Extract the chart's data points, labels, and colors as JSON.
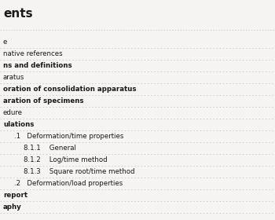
{
  "title": "ents",
  "background_color": "#f5f4f2",
  "rows": [
    {
      "indent": 0,
      "text": "e",
      "bold": false,
      "separator": true
    },
    {
      "indent": 0,
      "text": "native references",
      "bold": false,
      "separator": true
    },
    {
      "indent": 0,
      "text": "ns and definitions",
      "bold": true,
      "separator": true
    },
    {
      "indent": 0,
      "text": "aratus",
      "bold": false,
      "separator": true
    },
    {
      "indent": 0,
      "text": "oration of consolidation apparatus",
      "bold": true,
      "separator": true
    },
    {
      "indent": 0,
      "text": "aration of specimens",
      "bold": true,
      "separator": true
    },
    {
      "indent": 0,
      "text": "edure",
      "bold": false,
      "separator": true
    },
    {
      "indent": 0,
      "text": "ulations",
      "bold": true,
      "separator": true
    },
    {
      "indent": 1,
      "text": ".1   Deformation/time properties",
      "bold": false,
      "separator": true
    },
    {
      "indent": 2,
      "text": "8.1.1    General",
      "bold": false,
      "separator": true
    },
    {
      "indent": 2,
      "text": "8.1.2    Log/time method",
      "bold": false,
      "separator": true
    },
    {
      "indent": 2,
      "text": "8.1.3    Square root/time method",
      "bold": false,
      "separator": true
    },
    {
      "indent": 1,
      "text": ".2   Deformation/load properties",
      "bold": false,
      "separator": true
    },
    {
      "indent": 0,
      "text": "report",
      "bold": true,
      "separator": true
    },
    {
      "indent": 0,
      "text": "aphy",
      "bold": true,
      "separator": true
    }
  ],
  "title_fontsize": 11,
  "row_fontsize": 6.2,
  "title_color": "#1a1a1a",
  "text_color": "#1a1a1a",
  "separator_color": "#c0b8ac"
}
